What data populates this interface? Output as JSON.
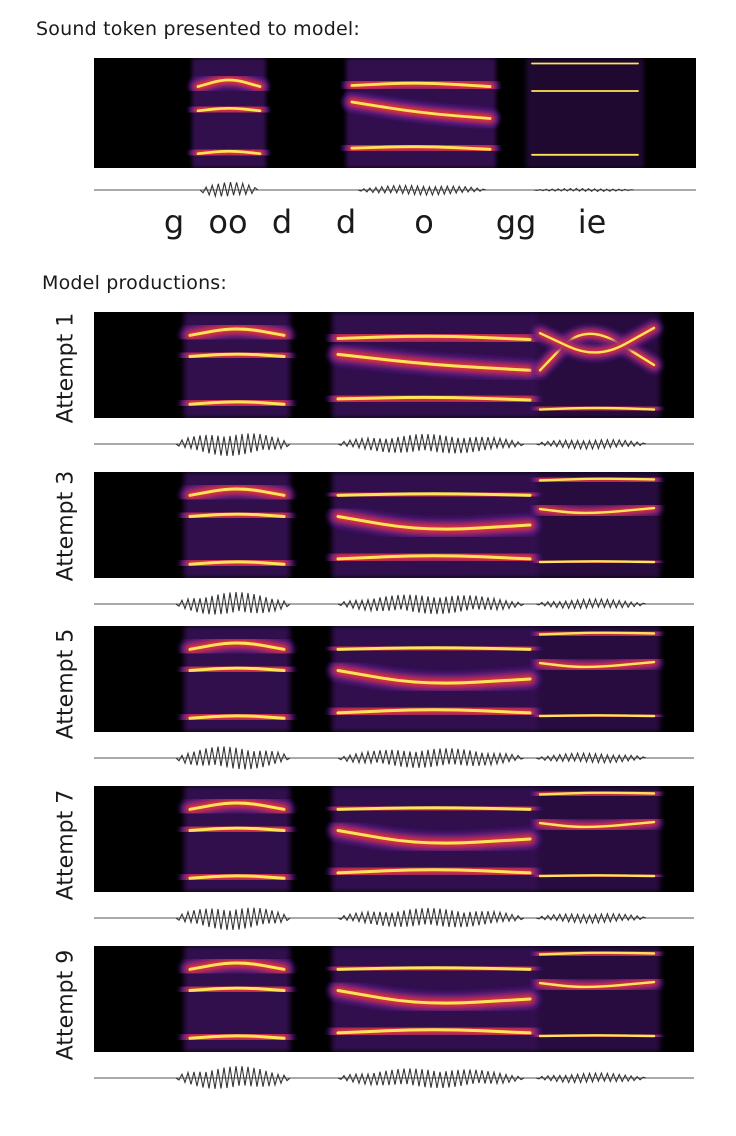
{
  "headings": {
    "top": "Sound token presented to model:",
    "productions": "Model productions:"
  },
  "phonemes": [
    "g",
    "oo",
    "d",
    "d",
    "o",
    "gg",
    "ie"
  ],
  "attempts": [
    "Attempt 1",
    "Attempt 3",
    "Attempt 5",
    "Attempt 7",
    "Attempt 9"
  ],
  "colors": {
    "background": "#000000",
    "band_outer": "#5a1a8c",
    "band_mid": "#e0303a",
    "band_core": "#ffe45a",
    "waveform": "#333333"
  }
}
